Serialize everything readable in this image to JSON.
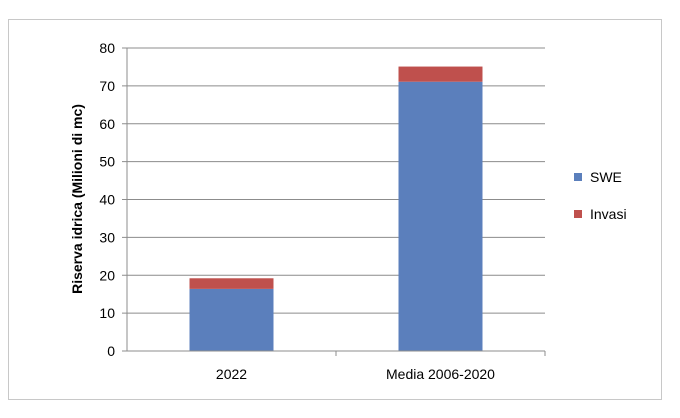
{
  "chart_data": {
    "type": "bar",
    "stacked": true,
    "categories": [
      "2022",
      "Media 2006-2020"
    ],
    "series": [
      {
        "name": "SWE",
        "values": [
          16.4,
          71.1
        ],
        "color": "#5b7fbc"
      },
      {
        "name": "Invasi",
        "values": [
          2.8,
          4.0
        ],
        "color": "#bf504d"
      }
    ],
    "title": "",
    "xlabel": "",
    "ylabel": "Riserva idrica (Milioni di mc)",
    "ylim": [
      0,
      80
    ],
    "yticks": [
      0,
      10,
      20,
      30,
      40,
      50,
      60,
      70,
      80
    ],
    "grid": true,
    "legend": "right"
  }
}
